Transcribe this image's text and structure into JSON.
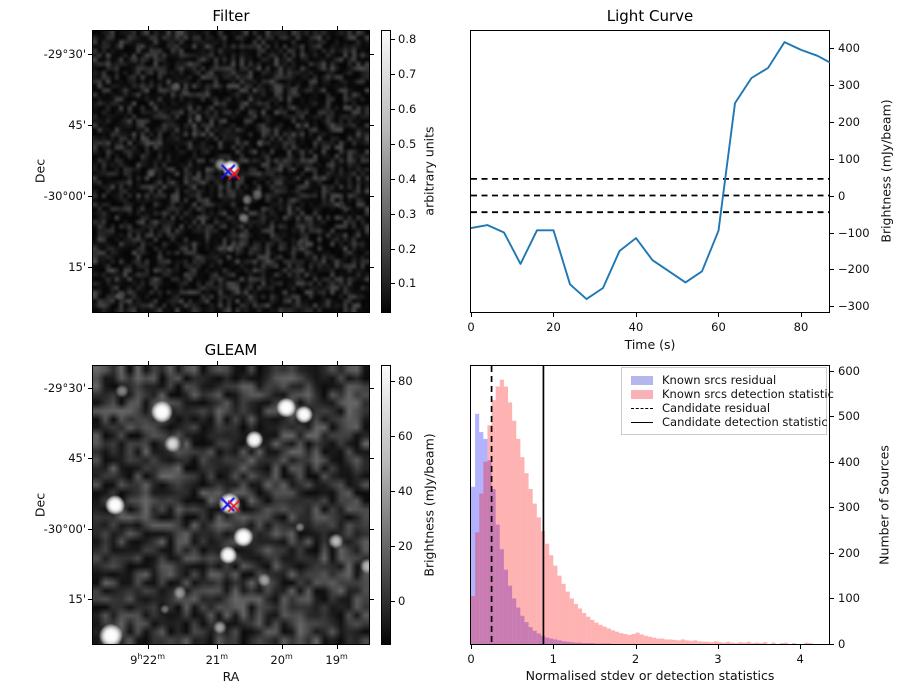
{
  "figure": {
    "background": "#ffffff"
  },
  "chart_data": [
    {
      "id": "filter_map",
      "type": "heatmap",
      "title": "Filter",
      "ylabel": "Dec",
      "dec_tick_labels": [
        "-29°30'",
        "45'",
        "-30°00'",
        "15'"
      ],
      "dec_tick_pos": [
        0.085,
        0.334,
        0.587,
        0.836
      ],
      "ra_tick_pos": [
        0.2,
        0.449,
        0.682,
        0.88
      ],
      "colorbar": {
        "label": "arbitrary units",
        "ticks": [
          0.8,
          0.7,
          0.6,
          0.5,
          0.4,
          0.3,
          0.2,
          0.1
        ],
        "vmin": 0.015,
        "vmax": 0.827
      },
      "markers": [
        {
          "shape": "x",
          "color": "#1414e6",
          "x": 0.49,
          "y": 0.5,
          "size": 6
        },
        {
          "shape": "x",
          "color": "#e61414",
          "x": 0.512,
          "y": 0.508,
          "size": 5
        }
      ],
      "sources": [
        [
          0.5,
          0.49,
          9,
          0.92
        ],
        [
          0.465,
          0.475,
          7,
          0.55
        ],
        [
          0.56,
          0.6,
          6,
          0.38
        ],
        [
          0.595,
          0.585,
          6,
          0.32
        ],
        [
          0.545,
          0.665,
          6,
          0.36
        ],
        [
          0.3,
          0.2,
          6,
          0.26
        ],
        [
          0.335,
          0.215,
          5,
          0.2
        ],
        [
          0.38,
          0.31,
          5,
          0.2
        ],
        [
          0.73,
          0.21,
          5,
          0.2
        ],
        [
          0.21,
          0.505,
          6,
          0.22
        ],
        [
          0.61,
          0.4,
          5,
          0.16
        ],
        [
          0.75,
          0.755,
          5,
          0.2
        ],
        [
          0.5,
          0.775,
          5,
          0.22
        ],
        [
          0.1,
          0.94,
          6,
          0.25
        ],
        [
          0.9,
          0.62,
          5,
          0.16
        ],
        [
          0.15,
          0.1,
          5,
          0.16
        ]
      ]
    },
    {
      "id": "light_curve",
      "type": "line",
      "title": "Light Curve",
      "xlabel": "Time (s)",
      "ylabel": "Brightness (mJy/beam)",
      "line_color": "#1f77b4",
      "threshold_lines": [
        45,
        0,
        -45
      ],
      "xticks": [
        0,
        20,
        40,
        60,
        80
      ],
      "yticks": [
        400,
        300,
        200,
        100,
        0,
        -100,
        -200,
        -300
      ],
      "xlim": [
        0,
        86.8
      ],
      "ylim": [
        -315,
        445
      ],
      "x": [
        0,
        4,
        8,
        12,
        16,
        20,
        24,
        28,
        32,
        36,
        40,
        44,
        48,
        52,
        56,
        60,
        64,
        68,
        72,
        76,
        80,
        84,
        87
      ],
      "y": [
        -88,
        -80,
        -100,
        -185,
        -94,
        -94,
        -240,
        -280,
        -250,
        -150,
        -115,
        -175,
        -205,
        -235,
        -205,
        -95,
        250,
        318,
        345,
        415,
        394,
        378,
        360
      ]
    },
    {
      "id": "gleam_map",
      "type": "heatmap",
      "title": "GLEAM",
      "xlabel": "RA",
      "ylabel": "Dec",
      "dec_tick_labels": [
        "-29°30'",
        "45'",
        "-30°00'",
        "15'"
      ],
      "dec_tick_pos": [
        0.082,
        0.332,
        0.585,
        0.836
      ],
      "ra_tick_labels": [
        "9^h22^m",
        "21^m",
        "20^m",
        "19^m"
      ],
      "ra_tick_pos": [
        0.2,
        0.449,
        0.682,
        0.88
      ],
      "colorbar": {
        "label": "Brightness (mJy/beam)",
        "ticks": [
          80,
          60,
          40,
          20,
          0
        ],
        "vmin": -16,
        "vmax": 86
      },
      "markers": [
        {
          "shape": "x",
          "color": "#1414e6",
          "x": 0.488,
          "y": 0.498,
          "size": 6
        },
        {
          "shape": "x",
          "color": "#e61414",
          "x": 0.51,
          "y": 0.504,
          "size": 5
        }
      ],
      "sources": [
        [
          0.495,
          0.495,
          11,
          1.0
        ],
        [
          0.25,
          0.165,
          11,
          1.0
        ],
        [
          0.29,
          0.28,
          9,
          0.85
        ],
        [
          0.105,
          0.09,
          7,
          0.5
        ],
        [
          0.585,
          0.265,
          9,
          0.9
        ],
        [
          0.7,
          0.15,
          10,
          1.0
        ],
        [
          0.765,
          0.175,
          9,
          0.95
        ],
        [
          0.08,
          0.5,
          10,
          1.0
        ],
        [
          0.545,
          0.615,
          10,
          1.0
        ],
        [
          0.49,
          0.68,
          9,
          0.9
        ],
        [
          0.88,
          0.63,
          8,
          0.75
        ],
        [
          0.62,
          0.77,
          7,
          0.55
        ],
        [
          0.315,
          0.815,
          7,
          0.5
        ],
        [
          0.46,
          0.94,
          7,
          0.6
        ],
        [
          0.065,
          0.97,
          12,
          1.0
        ],
        [
          0.995,
          0.72,
          8,
          0.7
        ],
        [
          0.26,
          0.875,
          5,
          0.4
        ],
        [
          0.75,
          0.58,
          5,
          0.45
        ]
      ]
    },
    {
      "id": "histogram",
      "type": "bar",
      "xlabel": "Normalised stdev or detection statistics",
      "ylabel": "Number of Sources",
      "xticks": [
        0,
        1,
        2,
        3,
        4
      ],
      "yticks": [
        600,
        500,
        400,
        300,
        200,
        100,
        0
      ],
      "xlim": [
        0,
        4.35
      ],
      "ylim": [
        0,
        610
      ],
      "bin_start": 0,
      "bin_width": 0.05,
      "series": [
        {
          "name": "Known srcs residual",
          "fill": "rgba(0,0,255,0.30)",
          "legend_color": "#b6b6ee",
          "values": [
            345,
            505,
            465,
            450,
            403,
            340,
            262,
            208,
            163,
            128,
            100,
            80,
            62,
            48,
            37,
            29,
            23,
            18,
            14,
            12,
            10,
            8,
            6,
            5,
            4,
            3,
            3,
            2,
            2,
            2,
            1,
            1,
            1,
            1
          ]
        },
        {
          "name": "Known srcs detection statistic",
          "fill": "rgba(255,0,0,0.30)",
          "legend_color": "#f9b0b6",
          "values": [
            105,
            245,
            330,
            400,
            480,
            535,
            565,
            580,
            565,
            530,
            490,
            450,
            410,
            375,
            340,
            308,
            278,
            248,
            220,
            195,
            172,
            150,
            132,
            115,
            100,
            88,
            78,
            68,
            60,
            53,
            47,
            42,
            38,
            34,
            30,
            27,
            24,
            22,
            20,
            22,
            25,
            21,
            18,
            16,
            14,
            12,
            12,
            10,
            10,
            9,
            8,
            10,
            8,
            7,
            8,
            6,
            5,
            5,
            4,
            6,
            4,
            3,
            5,
            3,
            2,
            4,
            3,
            5,
            2,
            3,
            2,
            4,
            0,
            3,
            0,
            2,
            3,
            0,
            2,
            0,
            0,
            3,
            2
          ]
        }
      ],
      "candidate_residual": {
        "label": "Candidate residual",
        "x": 0.25,
        "style": "dashed"
      },
      "candidate_detection": {
        "label": "Candidate detection statistic",
        "x": 0.88,
        "style": "solid"
      }
    }
  ]
}
